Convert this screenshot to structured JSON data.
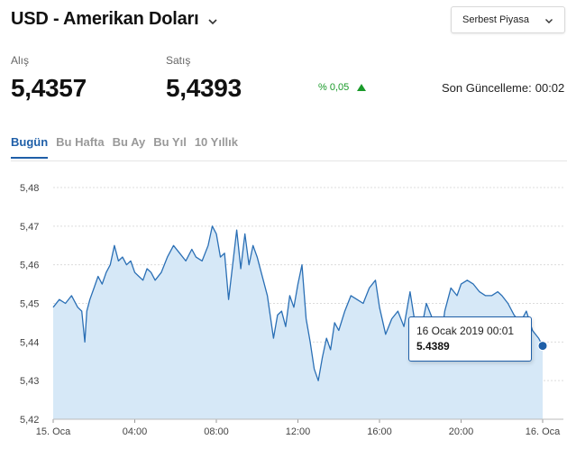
{
  "header": {
    "title": "USD - Amerikan Doları"
  },
  "market_select": {
    "selected": "Serbest Piyasa"
  },
  "prices": {
    "buy_label": "Alış",
    "buy_value": "5,4357",
    "sell_label": "Satış",
    "sell_value": "5,4393"
  },
  "change": {
    "text": "% 0,05",
    "direction": "up",
    "color": "#1a9a2a"
  },
  "last_update": {
    "label": "Son Güncelleme:",
    "time": "00:02"
  },
  "tabs": [
    {
      "label": "Bugün",
      "active": true
    },
    {
      "label": "Bu Hafta",
      "active": false
    },
    {
      "label": "Bu Ay",
      "active": false
    },
    {
      "label": "Bu Yıl",
      "active": false
    },
    {
      "label": "10 Yıllık",
      "active": false
    }
  ],
  "tooltip": {
    "date": "16 Ocak 2019 00:01",
    "value": "5.4389"
  },
  "colors": {
    "accent": "#1f5fa8",
    "line": "#2a6fb5",
    "area": "#d6e8f7"
  },
  "chart_data": {
    "type": "area",
    "title": "",
    "xlabel": "",
    "ylabel": "",
    "x_ticks": [
      "15. Oca",
      "04:00",
      "08:00",
      "12:00",
      "16:00",
      "20:00",
      "16. Oca"
    ],
    "y_ticks": [
      "5,42",
      "5,43",
      "5,44",
      "5,45",
      "5,46",
      "5,47",
      "5,48"
    ],
    "xlim_hours": [
      0,
      24
    ],
    "ylim": [
      5.42,
      5.48
    ],
    "grid": true,
    "series": [
      {
        "x": [
          0,
          0.3,
          0.6,
          0.9,
          1.2,
          1.4,
          1.55,
          1.65,
          1.8,
          2.0,
          2.2,
          2.4,
          2.6,
          2.8,
          3.0,
          3.2,
          3.4,
          3.6,
          3.8,
          4.0,
          4.2,
          4.4,
          4.6,
          4.8,
          5.0,
          5.3,
          5.6,
          5.9,
          6.2,
          6.5,
          6.8,
          7.0,
          7.3,
          7.6,
          7.8,
          8.0,
          8.2,
          8.4,
          8.6,
          8.8,
          9.0,
          9.2,
          9.4,
          9.6,
          9.8,
          10.0,
          10.2,
          10.5,
          10.8,
          11.0,
          11.2,
          11.4,
          11.6,
          11.8,
          12.0,
          12.2,
          12.4,
          12.6,
          12.8,
          13.0,
          13.2,
          13.4,
          13.6,
          13.8,
          14.0,
          14.3,
          14.6,
          14.9,
          15.2,
          15.5,
          15.8,
          16.0,
          16.3,
          16.6,
          16.9,
          17.2,
          17.5,
          17.8,
          18.0,
          18.3,
          18.6,
          18.9,
          19.2,
          19.5,
          19.8,
          20.0,
          20.3,
          20.6,
          20.9,
          21.2,
          21.5,
          21.8,
          22.0,
          22.3,
          22.6,
          22.9,
          23.2,
          23.5,
          23.8,
          24.0
        ],
        "y": [
          5.449,
          5.451,
          5.45,
          5.452,
          5.449,
          5.448,
          5.44,
          5.448,
          5.451,
          5.454,
          5.457,
          5.455,
          5.458,
          5.46,
          5.465,
          5.461,
          5.462,
          5.46,
          5.461,
          5.458,
          5.457,
          5.456,
          5.459,
          5.458,
          5.456,
          5.458,
          5.462,
          5.465,
          5.463,
          5.461,
          5.464,
          5.462,
          5.461,
          5.465,
          5.47,
          5.468,
          5.462,
          5.463,
          5.451,
          5.46,
          5.469,
          5.459,
          5.468,
          5.46,
          5.465,
          5.462,
          5.458,
          5.452,
          5.441,
          5.447,
          5.448,
          5.444,
          5.452,
          5.449,
          5.455,
          5.46,
          5.446,
          5.44,
          5.433,
          5.43,
          5.436,
          5.441,
          5.438,
          5.445,
          5.443,
          5.448,
          5.452,
          5.451,
          5.45,
          5.454,
          5.456,
          5.449,
          5.442,
          5.446,
          5.448,
          5.444,
          5.453,
          5.443,
          5.442,
          5.45,
          5.446,
          5.436,
          5.448,
          5.454,
          5.452,
          5.455,
          5.456,
          5.455,
          5.453,
          5.452,
          5.452,
          5.453,
          5.452,
          5.45,
          5.447,
          5.445,
          5.448,
          5.443,
          5.441,
          5.439
        ]
      }
    ]
  }
}
